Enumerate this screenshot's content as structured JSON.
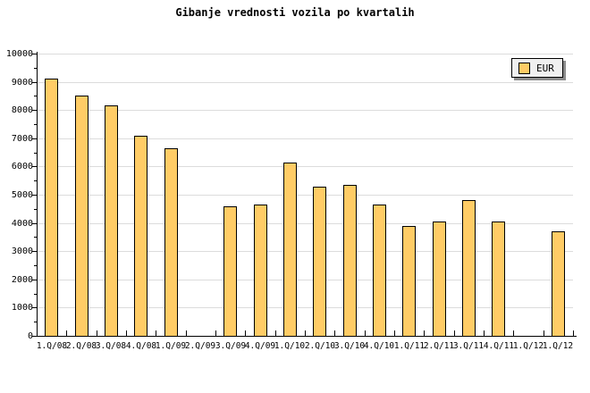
{
  "colors": {
    "bar_fill": "#FFCC66",
    "bar_border": "#000000",
    "gridline": "#DCDCDC",
    "axis": "#000000",
    "legend_bg": "#F0F0F0",
    "legend_shadow": "#8C8C8C",
    "background": "#FFFFFF"
  },
  "legend": {
    "label": "EUR"
  },
  "chart_data": {
    "type": "bar",
    "title": "Gibanje vrednosti vozila po kvartalih",
    "series_name": "EUR",
    "categories": [
      "1.Q/08",
      "2.Q/08",
      "3.Q/08",
      "4.Q/08",
      "1.Q/09",
      "2.Q/09",
      "3.Q/09",
      "4.Q/09",
      "1.Q/10",
      "2.Q/10",
      "3.Q/10",
      "4.Q/10",
      "1.Q/11",
      "2.Q/11",
      "3.Q/11",
      "4.Q/11",
      "1.Q/12",
      "1.Q/12"
    ],
    "values": [
      9100,
      8500,
      8150,
      7100,
      6650,
      0,
      4600,
      4650,
      6150,
      5300,
      5350,
      4650,
      3900,
      4050,
      4800,
      4050,
      0,
      3700
    ],
    "xlabel": "",
    "ylabel": "",
    "ylim": [
      0,
      10000
    ],
    "ytick_step": 1000,
    "yminor_step": 500,
    "y_tick_labels": [
      "0",
      "1000",
      "2000",
      "3000",
      "4000",
      "5000",
      "6000",
      "7000",
      "8000",
      "9000",
      "10000"
    ],
    "grid": "horizontal",
    "legend_position": "top-right",
    "bar_color": "#FFCC66",
    "missing_value_slots": [
      5,
      16
    ]
  }
}
